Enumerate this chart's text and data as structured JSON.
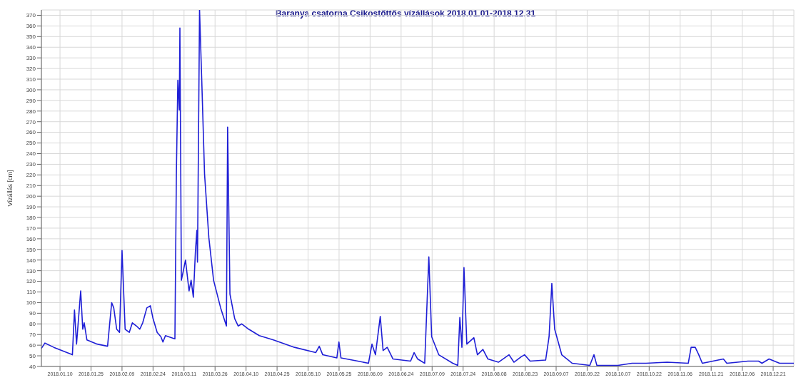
{
  "chart_data": {
    "type": "line",
    "title": "Baranya csatorna Csikostőttős vízállások 2018.01.01-2018.12.31",
    "ylabel": "Vízállás [cm]",
    "color": "#1f1fd6",
    "grid": true,
    "x": [
      "2018-01-01",
      "2018-01-02T17:00",
      "2018-01-07",
      "2018-01-16",
      "2018-01-17",
      "2018-01-18",
      "2018-01-20",
      "2018-01-21",
      "2018-01-21T17:00",
      "2018-01-23",
      "2018-01-28",
      "2018-02-02",
      "2018-02-04",
      "2018-02-05",
      "2018-02-06T10:00",
      "2018-02-07T19:00",
      "2018-02-09",
      "2018-02-10T12:00",
      "2018-02-12T12:00",
      "2018-02-14",
      "2018-02-16",
      "2018-02-17T14:00",
      "2018-02-19",
      "2018-02-21",
      "2018-02-22T17:00",
      "2018-02-24",
      "2018-02-26",
      "2018-02-27T19:00",
      "2018-02-28T19:00",
      "2018-03-02",
      "2018-03-05",
      "2018-03-06T14:00",
      "2018-03-07T07:00",
      "2018-03-08",
      "2018-03-08T17:00",
      "2018-03-09",
      "2018-03-09T17:00",
      "2018-03-11T17:00",
      "2018-03-13T10:00",
      "2018-03-14T10:00",
      "2018-03-15T12:00",
      "2018-03-16T12:00",
      "2018-03-17T05:00",
      "2018-03-17T12:00",
      "2018-03-18T12:00",
      "2018-03-19T14:00",
      "2018-03-20T22:00",
      "2018-03-23",
      "2018-03-25T07:00",
      "2018-03-28T17:00",
      "2018-03-31T12:00",
      "2018-04-01T02:00",
      "2018-04-02T05:00",
      "2018-04-04T12:00",
      "2018-04-06T05:00",
      "2018-04-07T22:00",
      "2018-04-11T07:00",
      "2018-04-16T10:00",
      "2018-04-23T05:00",
      "2018-05-03T10:00",
      "2018-05-13T17:00",
      "2018-05-15T10:00",
      "2018-05-17T02:00",
      "2018-05-23T22:00",
      "2018-05-24T22:00",
      "2018-05-25T22:00",
      "2018-06-03T02:00",
      "2018-06-08T05:00",
      "2018-06-09T22:00",
      "2018-06-11T14:00",
      "2018-06-13T22:00",
      "2018-06-15T07:00",
      "2018-06-17T07:00",
      "2018-06-20T02:00",
      "2018-06-28T14:00",
      "2018-06-30T07:00",
      "2018-07-02",
      "2018-07-05T10:00",
      "2018-07-07T10:00",
      "2018-07-08T19:00",
      "2018-07-12T05:00",
      "2018-07-19",
      "2018-07-21T10:00",
      "2018-07-22T10:00",
      "2018-07-23T10:00",
      "2018-07-24T10:00",
      "2018-07-25T19:00",
      "2018-07-29T05:00",
      "2018-07-30T22:00",
      "2018-08-02T14:00",
      "2018-08-05",
      "2018-08-10T02:00",
      "2018-08-15T05:00",
      "2018-08-17T14:00",
      "2018-08-21",
      "2018-08-22T17:00",
      "2018-08-25T10:00",
      "2018-09-01T22:00",
      "2018-09-03T14:00",
      "2018-09-04T22:00",
      "2018-09-06T07:00",
      "2018-09-09T17:00",
      "2018-09-14T19:00",
      "2018-09-23T07:00",
      "2018-09-25T07:00",
      "2018-09-26T17:00",
      "2018-10-06T22:00",
      "2018-10-13T17:00",
      "2018-10-20T12:00",
      "2018-10-30T17:00",
      "2018-11-09T22:00",
      "2018-11-11T07:00",
      "2018-11-13T07:00",
      "2018-11-15",
      "2018-11-16T17:00",
      "2018-11-26T22:00",
      "2018-11-28T14:00",
      "2018-12-08T19:00",
      "2018-12-13T22:00",
      "2018-12-15T14:00",
      "2018-12-19",
      "2018-12-24T02:00",
      "2018-12-31"
    ],
    "values": [
      57,
      62,
      58,
      51,
      93,
      61,
      111,
      75,
      81,
      65,
      61,
      59,
      100,
      95,
      75,
      72,
      149,
      75,
      72,
      81,
      78,
      75,
      81,
      95,
      97,
      85,
      72,
      68,
      63,
      69,
      67,
      66,
      221,
      309,
      281,
      358,
      121,
      140,
      111,
      121,
      105,
      148,
      168,
      138,
      375,
      308,
      221,
      161,
      121,
      95,
      78,
      265,
      108,
      85,
      78,
      80,
      75,
      69,
      65,
      58,
      53,
      59,
      51,
      48,
      63,
      48,
      45,
      43,
      61,
      51,
      87,
      55,
      58,
      47,
      45,
      53,
      47,
      43,
      143,
      68,
      51,
      43,
      41,
      86,
      58,
      133,
      61,
      67,
      51,
      56,
      47,
      44,
      51,
      44,
      49,
      51,
      45,
      46,
      68,
      118,
      75,
      51,
      43,
      41,
      51,
      41,
      41,
      43,
      43,
      44,
      43,
      58,
      58,
      51,
      43,
      47,
      43,
      45,
      45,
      43,
      47,
      43,
      43
    ],
    "xlim": [
      "2018-01-01",
      "2018-12-31"
    ],
    "xticks": [
      {
        "value": "2018-01-10",
        "label": "2018.01.10"
      },
      {
        "value": "2018-01-25",
        "label": "2018.01.25"
      },
      {
        "value": "2018-02-09",
        "label": "2018.02.09"
      },
      {
        "value": "2018-02-24",
        "label": "2018.02.24"
      },
      {
        "value": "2018-03-11",
        "label": "2018.03.11"
      },
      {
        "value": "2018-03-26",
        "label": "2018.03.26"
      },
      {
        "value": "2018-04-10",
        "label": "2018.04.10"
      },
      {
        "value": "2018-04-25",
        "label": "2018.04.25"
      },
      {
        "value": "2018-05-10",
        "label": "2018.05.10"
      },
      {
        "value": "2018-05-25",
        "label": "2018.05.25"
      },
      {
        "value": "2018-06-09",
        "label": "2018.06.09"
      },
      {
        "value": "2018-06-24",
        "label": "2018.06.24"
      },
      {
        "value": "2018-07-09",
        "label": "2018.07.09"
      },
      {
        "value": "2018-07-24",
        "label": "2018.07.24"
      },
      {
        "value": "2018-08-08",
        "label": "2018.08.08"
      },
      {
        "value": "2018-08-23",
        "label": "2018.08.23"
      },
      {
        "value": "2018-09-07",
        "label": "2018.09.07"
      },
      {
        "value": "2018-09-22",
        "label": "2018.09.22"
      },
      {
        "value": "2018-10-07",
        "label": "2018.10.07"
      },
      {
        "value": "2018-10-22",
        "label": "2018.10.22"
      },
      {
        "value": "2018-11-06",
        "label": "2018.11.06"
      },
      {
        "value": "2018-11-21",
        "label": "2018.11.21"
      },
      {
        "value": "2018-12-06",
        "label": "2018.12.06"
      },
      {
        "value": "2018-12-21",
        "label": "2018.12.21"
      }
    ],
    "ylim": [
      40,
      375
    ],
    "yticks": [
      40,
      50,
      60,
      70,
      80,
      90,
      100,
      110,
      120,
      130,
      140,
      150,
      160,
      170,
      180,
      190,
      200,
      210,
      220,
      230,
      240,
      250,
      260,
      270,
      280,
      290,
      300,
      310,
      320,
      330,
      340,
      350,
      360,
      370
    ]
  }
}
